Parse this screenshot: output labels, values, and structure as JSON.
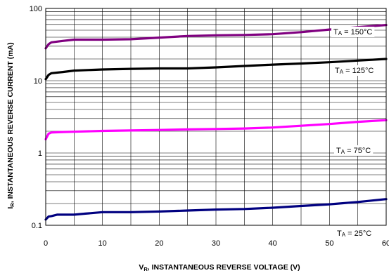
{
  "chart_data": {
    "type": "line",
    "title": "",
    "xlabel": "V",
    "xlabel_sub": "R",
    "xlabel_rest": ", INSTANTANEOUS REVERSE VOLTAGE (V)",
    "ylabel": "I",
    "ylabel_sub": "R",
    "ylabel_rest": ", INSTANTANEOUS REVERSE CURRENT (mA)",
    "xlim": [
      0,
      60
    ],
    "ylim": [
      0.1,
      100
    ],
    "yscale": "log",
    "grid": true,
    "x_ticks": [
      0,
      10,
      20,
      30,
      40,
      50,
      60
    ],
    "x_tick_labels": [
      "0",
      "10",
      "20",
      "30",
      "40",
      "50",
      "60"
    ],
    "y_ticks": [
      0.1,
      1,
      10,
      100
    ],
    "y_tick_labels": [
      "0.1",
      "1",
      "10",
      "100"
    ],
    "series": [
      {
        "label_main": "T",
        "label_sub": "A",
        "label_rest": "= 150°C",
        "color": "#800080",
        "x": [
          0,
          0.5,
          1,
          3,
          5,
          10,
          15,
          20,
          25,
          30,
          35,
          40,
          45,
          50,
          55,
          60
        ],
        "y": [
          28,
          32,
          34,
          35.5,
          37,
          37,
          37.5,
          39.5,
          41.5,
          42.5,
          43,
          44,
          47,
          51,
          55,
          59
        ]
      },
      {
        "label_main": "T",
        "label_sub": "A",
        "label_rest": "= 125°C",
        "color": "#000000",
        "x": [
          0,
          0.5,
          1,
          3,
          5,
          10,
          15,
          20,
          25,
          30,
          35,
          40,
          45,
          50,
          55,
          60
        ],
        "y": [
          10.5,
          12,
          12.7,
          13.2,
          13.8,
          14.3,
          14.6,
          14.8,
          14.8,
          15.3,
          16,
          16.7,
          17.3,
          18,
          19,
          20
        ]
      },
      {
        "label_main": "T",
        "label_sub": "A",
        "label_rest": "= 75°C",
        "color": "#ff00ff",
        "x": [
          0,
          0.5,
          1,
          3,
          5,
          10,
          15,
          20,
          25,
          30,
          35,
          40,
          45,
          50,
          55,
          60
        ],
        "y": [
          1.55,
          1.85,
          1.92,
          1.95,
          1.97,
          2.02,
          2.05,
          2.08,
          2.12,
          2.15,
          2.18,
          2.25,
          2.38,
          2.52,
          2.7,
          2.85
        ]
      },
      {
        "label_main": "T",
        "label_sub": "A",
        "label_rest": "= 25°C",
        "color": "#000080",
        "x": [
          0,
          0.5,
          1,
          2,
          5,
          7,
          10,
          15,
          20,
          25,
          30,
          35,
          40,
          45,
          50,
          55,
          60
        ],
        "y": [
          0.12,
          0.132,
          0.134,
          0.14,
          0.14,
          0.145,
          0.152,
          0.152,
          0.155,
          0.16,
          0.165,
          0.168,
          0.175,
          0.185,
          0.195,
          0.21,
          0.23
        ]
      }
    ]
  }
}
